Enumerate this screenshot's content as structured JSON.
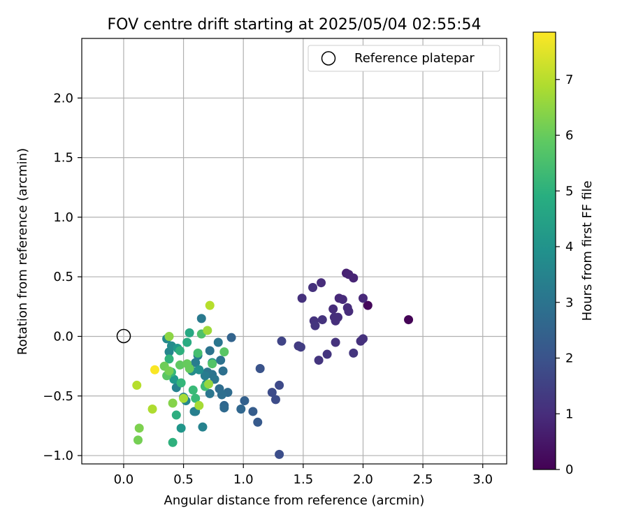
{
  "chart_data": {
    "type": "scatter",
    "title": "FOV centre drift starting at 2025/05/04 02:55:54",
    "xlabel": "Angular distance from reference (arcmin)",
    "ylabel": "Rotation from reference (arcmin)",
    "xlim": [
      -0.35,
      3.2
    ],
    "ylim": [
      -1.07,
      2.5
    ],
    "xticks": [
      0.0,
      0.5,
      1.0,
      1.5,
      2.0,
      2.5,
      3.0
    ],
    "xtick_labels": [
      "0.0",
      "0.5",
      "1.0",
      "1.5",
      "2.0",
      "2.5",
      "3.0"
    ],
    "yticks": [
      -1.0,
      -0.5,
      0.0,
      0.5,
      1.0,
      1.5,
      2.0
    ],
    "ytick_labels": [
      "−1.0",
      "−0.5",
      "0.0",
      "0.5",
      "1.0",
      "1.5",
      "2.0"
    ],
    "grid": true,
    "legend": {
      "placement": "top-right",
      "entries": [
        "Reference platepar"
      ]
    },
    "reference_point": {
      "x": 0.0,
      "y": 0.0,
      "label": "Reference platepar"
    },
    "colorbar": {
      "label": "Hours from first FF file",
      "min": 0,
      "max": 7.85,
      "ticks": [
        0,
        1,
        2,
        3,
        4,
        5,
        6,
        7
      ],
      "tick_labels": [
        "0",
        "1",
        "2",
        "3",
        "4",
        "5",
        "6",
        "7"
      ],
      "colormap": "viridis"
    },
    "points": [
      {
        "x": 2.38,
        "y": 0.14,
        "h": 0.05
      },
      {
        "x": 2.04,
        "y": 0.26,
        "h": 0.15
      },
      {
        "x": 1.86,
        "y": 0.53,
        "h": 0.7
      },
      {
        "x": 1.88,
        "y": 0.52,
        "h": 0.75
      },
      {
        "x": 1.92,
        "y": 0.49,
        "h": 0.8
      },
      {
        "x": 2.0,
        "y": 0.32,
        "h": 0.9
      },
      {
        "x": 1.8,
        "y": 0.32,
        "h": 0.9
      },
      {
        "x": 1.83,
        "y": 0.31,
        "h": 0.95
      },
      {
        "x": 1.87,
        "y": 0.24,
        "h": 1.0
      },
      {
        "x": 1.88,
        "y": 0.21,
        "h": 1.0
      },
      {
        "x": 1.75,
        "y": 0.23,
        "h": 1.0
      },
      {
        "x": 1.76,
        "y": 0.16,
        "h": 1.05
      },
      {
        "x": 1.79,
        "y": 0.16,
        "h": 1.05
      },
      {
        "x": 1.77,
        "y": 0.13,
        "h": 1.05
      },
      {
        "x": 1.65,
        "y": 0.45,
        "h": 1.0
      },
      {
        "x": 1.58,
        "y": 0.41,
        "h": 1.1
      },
      {
        "x": 1.49,
        "y": 0.32,
        "h": 1.1
      },
      {
        "x": 1.59,
        "y": 0.13,
        "h": 1.15
      },
      {
        "x": 1.66,
        "y": 0.14,
        "h": 1.15
      },
      {
        "x": 1.6,
        "y": 0.09,
        "h": 1.2
      },
      {
        "x": 2.0,
        "y": -0.02,
        "h": 1.1
      },
      {
        "x": 1.98,
        "y": -0.04,
        "h": 1.1
      },
      {
        "x": 1.77,
        "y": -0.05,
        "h": 1.15
      },
      {
        "x": 1.92,
        "y": -0.14,
        "h": 1.2
      },
      {
        "x": 1.7,
        "y": -0.15,
        "h": 1.2
      },
      {
        "x": 1.63,
        "y": -0.2,
        "h": 1.2
      },
      {
        "x": 1.46,
        "y": -0.08,
        "h": 1.35
      },
      {
        "x": 1.48,
        "y": -0.09,
        "h": 1.4
      },
      {
        "x": 1.32,
        "y": -0.04,
        "h": 1.6
      },
      {
        "x": 1.3,
        "y": -0.41,
        "h": 1.75
      },
      {
        "x": 1.24,
        "y": -0.47,
        "h": 1.8
      },
      {
        "x": 1.27,
        "y": -0.53,
        "h": 1.8
      },
      {
        "x": 1.3,
        "y": -0.99,
        "h": 1.85
      },
      {
        "x": 1.14,
        "y": -0.27,
        "h": 2.0
      },
      {
        "x": 1.01,
        "y": -0.54,
        "h": 2.4
      },
      {
        "x": 1.08,
        "y": -0.63,
        "h": 2.3
      },
      {
        "x": 1.12,
        "y": -0.72,
        "h": 2.2
      },
      {
        "x": 0.9,
        "y": -0.01,
        "h": 2.5
      },
      {
        "x": 0.98,
        "y": -0.61,
        "h": 2.6
      },
      {
        "x": 0.84,
        "y": -0.58,
        "h": 2.6
      },
      {
        "x": 0.84,
        "y": -0.6,
        "h": 2.7
      },
      {
        "x": 0.87,
        "y": -0.47,
        "h": 2.75
      },
      {
        "x": 0.8,
        "y": -0.44,
        "h": 2.8
      },
      {
        "x": 0.82,
        "y": -0.49,
        "h": 2.85
      },
      {
        "x": 0.83,
        "y": -0.29,
        "h": 2.9
      },
      {
        "x": 0.81,
        "y": -0.2,
        "h": 2.95
      },
      {
        "x": 0.79,
        "y": -0.05,
        "h": 3.1
      },
      {
        "x": 0.72,
        "y": -0.12,
        "h": 3.0
      },
      {
        "x": 0.74,
        "y": -0.32,
        "h": 3.0
      },
      {
        "x": 0.7,
        "y": -0.3,
        "h": 3.05
      },
      {
        "x": 0.72,
        "y": -0.48,
        "h": 3.1
      },
      {
        "x": 0.76,
        "y": -0.36,
        "h": 3.1
      },
      {
        "x": 0.65,
        "y": 0.15,
        "h": 3.2
      },
      {
        "x": 0.6,
        "y": -0.22,
        "h": 3.3
      },
      {
        "x": 0.68,
        "y": -0.33,
        "h": 3.3
      },
      {
        "x": 0.62,
        "y": -0.16,
        "h": 3.35
      },
      {
        "x": 0.59,
        "y": -0.63,
        "h": 3.4
      },
      {
        "x": 0.6,
        "y": -0.63,
        "h": 3.4
      },
      {
        "x": 0.66,
        "y": -0.76,
        "h": 3.5
      },
      {
        "x": 0.5,
        "y": -0.51,
        "h": 3.5
      },
      {
        "x": 0.44,
        "y": -0.43,
        "h": 3.5
      },
      {
        "x": 0.52,
        "y": -0.54,
        "h": 3.6
      },
      {
        "x": 0.38,
        "y": -0.13,
        "h": 3.6
      },
      {
        "x": 0.36,
        "y": -0.02,
        "h": 3.7
      },
      {
        "x": 0.4,
        "y": -0.08,
        "h": 3.8
      },
      {
        "x": 0.57,
        "y": -0.29,
        "h": 3.8
      },
      {
        "x": 0.63,
        "y": -0.28,
        "h": 3.9
      },
      {
        "x": 0.69,
        "y": -0.4,
        "h": 3.9
      },
      {
        "x": 0.74,
        "y": -0.22,
        "h": 4.0
      },
      {
        "x": 0.48,
        "y": -0.77,
        "h": 4.1
      },
      {
        "x": 0.45,
        "y": -0.1,
        "h": 4.2
      },
      {
        "x": 0.42,
        "y": -0.36,
        "h": 4.2
      },
      {
        "x": 0.55,
        "y": 0.03,
        "h": 4.7
      },
      {
        "x": 0.53,
        "y": -0.05,
        "h": 4.8
      },
      {
        "x": 0.44,
        "y": -0.66,
        "h": 4.9
      },
      {
        "x": 0.47,
        "y": -0.12,
        "h": 5.0
      },
      {
        "x": 0.41,
        "y": -0.89,
        "h": 5.0
      },
      {
        "x": 0.38,
        "y": -0.19,
        "h": 5.1
      },
      {
        "x": 0.4,
        "y": -0.3,
        "h": 5.2
      },
      {
        "x": 0.48,
        "y": -0.39,
        "h": 5.2
      },
      {
        "x": 0.58,
        "y": -0.45,
        "h": 5.3
      },
      {
        "x": 0.6,
        "y": -0.52,
        "h": 5.3
      },
      {
        "x": 0.68,
        "y": -0.42,
        "h": 5.4
      },
      {
        "x": 0.62,
        "y": -0.14,
        "h": 5.5
      },
      {
        "x": 0.65,
        "y": 0.02,
        "h": 5.6
      },
      {
        "x": 0.74,
        "y": -0.23,
        "h": 5.7
      },
      {
        "x": 0.84,
        "y": -0.13,
        "h": 5.8
      },
      {
        "x": 0.36,
        "y": -0.33,
        "h": 5.8
      },
      {
        "x": 0.47,
        "y": -0.24,
        "h": 5.9
      },
      {
        "x": 0.53,
        "y": -0.23,
        "h": 6.0
      },
      {
        "x": 0.55,
        "y": -0.27,
        "h": 6.0
      },
      {
        "x": 0.34,
        "y": -0.25,
        "h": 6.1
      },
      {
        "x": 0.38,
        "y": -0.29,
        "h": 6.2
      },
      {
        "x": 0.12,
        "y": -0.87,
        "h": 6.2
      },
      {
        "x": 0.13,
        "y": -0.77,
        "h": 6.3
      },
      {
        "x": 0.41,
        "y": -0.56,
        "h": 6.4
      },
      {
        "x": 0.38,
        "y": 0.0,
        "h": 6.5
      },
      {
        "x": 0.71,
        "y": -0.4,
        "h": 6.6
      },
      {
        "x": 0.7,
        "y": 0.05,
        "h": 6.7
      },
      {
        "x": 0.5,
        "y": -0.52,
        "h": 6.8
      },
      {
        "x": 0.63,
        "y": -0.58,
        "h": 6.8
      },
      {
        "x": 0.24,
        "y": -0.61,
        "h": 6.9
      },
      {
        "x": 0.72,
        "y": 0.26,
        "h": 7.0
      },
      {
        "x": 0.11,
        "y": -0.41,
        "h": 7.0
      },
      {
        "x": 0.26,
        "y": -0.28,
        "h": 7.8
      }
    ]
  }
}
